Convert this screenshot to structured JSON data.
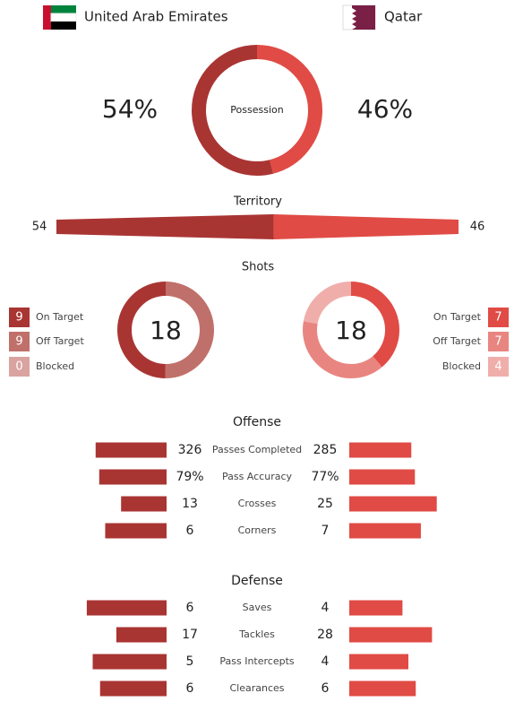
{
  "teams": {
    "home": "United Arab Emirates",
    "away": "Qatar"
  },
  "possession": {
    "label": "Possession",
    "home": 54,
    "away": 46,
    "home_label": "54%",
    "away_label": "46%"
  },
  "territory": {
    "title": "Territory",
    "home": 54,
    "away": 46
  },
  "shots": {
    "title": "Shots",
    "home": {
      "total": 18,
      "segments": [
        {
          "name": "On Target",
          "value": 9,
          "color": "#a93533"
        },
        {
          "name": "Off Target",
          "value": 9,
          "color": "#c0706a"
        },
        {
          "name": "Blocked",
          "value": 0,
          "color": "#d9a3a0"
        }
      ]
    },
    "away": {
      "total": 18,
      "segments": [
        {
          "name": "On Target",
          "value": 7,
          "color": "#e04b45"
        },
        {
          "name": "Off Target",
          "value": 7,
          "color": "#e98580"
        },
        {
          "name": "Blocked",
          "value": 4,
          "color": "#f0aeab"
        }
      ]
    }
  },
  "offense": {
    "title": "Offense",
    "rows": [
      {
        "label": "Passes Completed",
        "home": 326,
        "away": 285
      },
      {
        "label": "Pass Accuracy",
        "home": 79,
        "away": 77,
        "home_label": "79%",
        "away_label": "77%"
      },
      {
        "label": "Crosses",
        "home": 13,
        "away": 25
      },
      {
        "label": "Corners",
        "home": 6,
        "away": 7
      }
    ]
  },
  "defense": {
    "title": "Defense",
    "rows": [
      {
        "label": "Saves",
        "home": 6,
        "away": 4
      },
      {
        "label": "Tackles",
        "home": 17,
        "away": 28
      },
      {
        "label": "Pass Intercepts",
        "home": 5,
        "away": 4
      },
      {
        "label": "Clearances",
        "home": 6,
        "away": 6
      }
    ]
  },
  "colors": {
    "home": "#a93533",
    "away": "#e04b45"
  }
}
